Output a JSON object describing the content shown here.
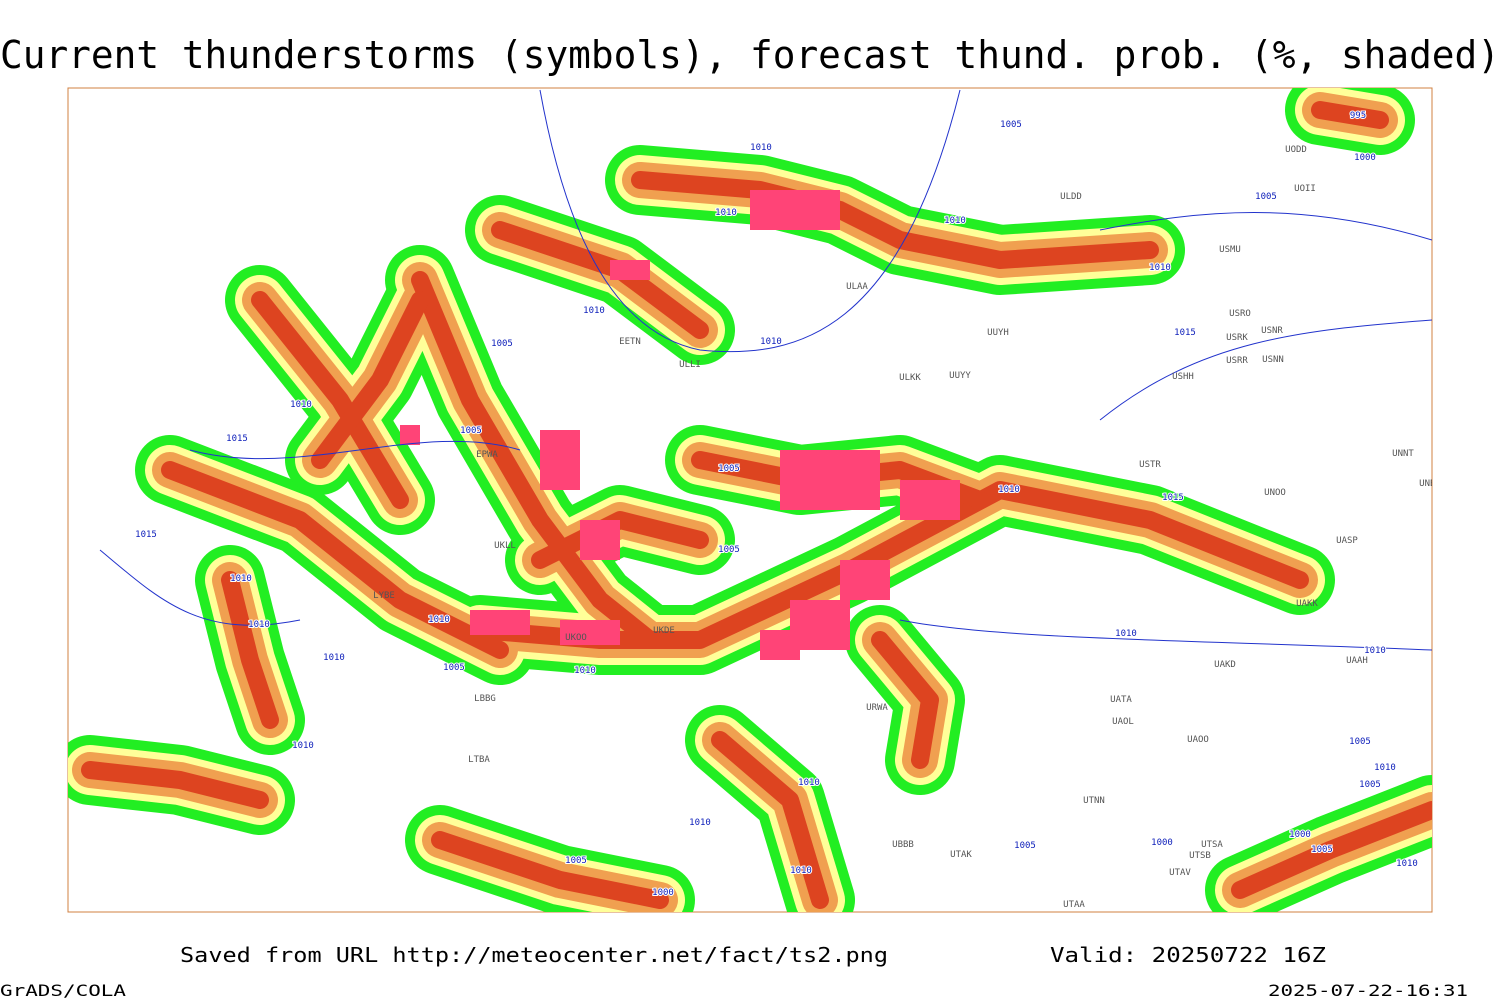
{
  "header": {
    "title": "Current thunderstorms (symbols), forecast thund. prob. (%, shaded)"
  },
  "footer": {
    "source": "Saved from URL http://meteocenter.net/fact/ts2.png",
    "valid": "Valid: 20250722 16Z",
    "software": "GrADS/COLA",
    "timestamp": "2025-07-22-16:31"
  },
  "isobar_labels": [
    "995",
    "1000",
    "1005",
    "1010",
    "1005",
    "1010",
    "1010",
    "1010",
    "1010",
    "1005",
    "1010",
    "1015",
    "1010",
    "1005",
    "1015",
    "1005",
    "1010",
    "1015",
    "1015",
    "1005",
    "1010",
    "1010",
    "1010",
    "1010",
    "1010",
    "1005",
    "1010",
    "1010",
    "1010",
    "1005",
    "1010",
    "1005",
    "1010",
    "1010",
    "1000",
    "1000",
    "1005",
    "1005",
    "1005",
    "1010",
    "1010",
    "1000"
  ],
  "stations": [
    "ULAA",
    "UUYH",
    "UUYY",
    "ULKK",
    "USRO",
    "USRK",
    "USNR",
    "USRR",
    "USNN",
    "USHH",
    "UODD",
    "UOII",
    "ULDD",
    "USMU",
    "USTR",
    "UNNT",
    "UNBB",
    "UNOO",
    "UASP",
    "UAKK",
    "UAKD",
    "UAAH",
    "UATA",
    "UAOL",
    "UAOO",
    "UTNN",
    "UTSA",
    "UTSB",
    "UTAV",
    "UTAA",
    "UBBB",
    "UTAK",
    "EETN",
    "EPWA",
    "UKLL",
    "LYBE",
    "UKOO",
    "UKDE",
    "URWA",
    "LTBA",
    "LBBG",
    "ULLI"
  ]
}
